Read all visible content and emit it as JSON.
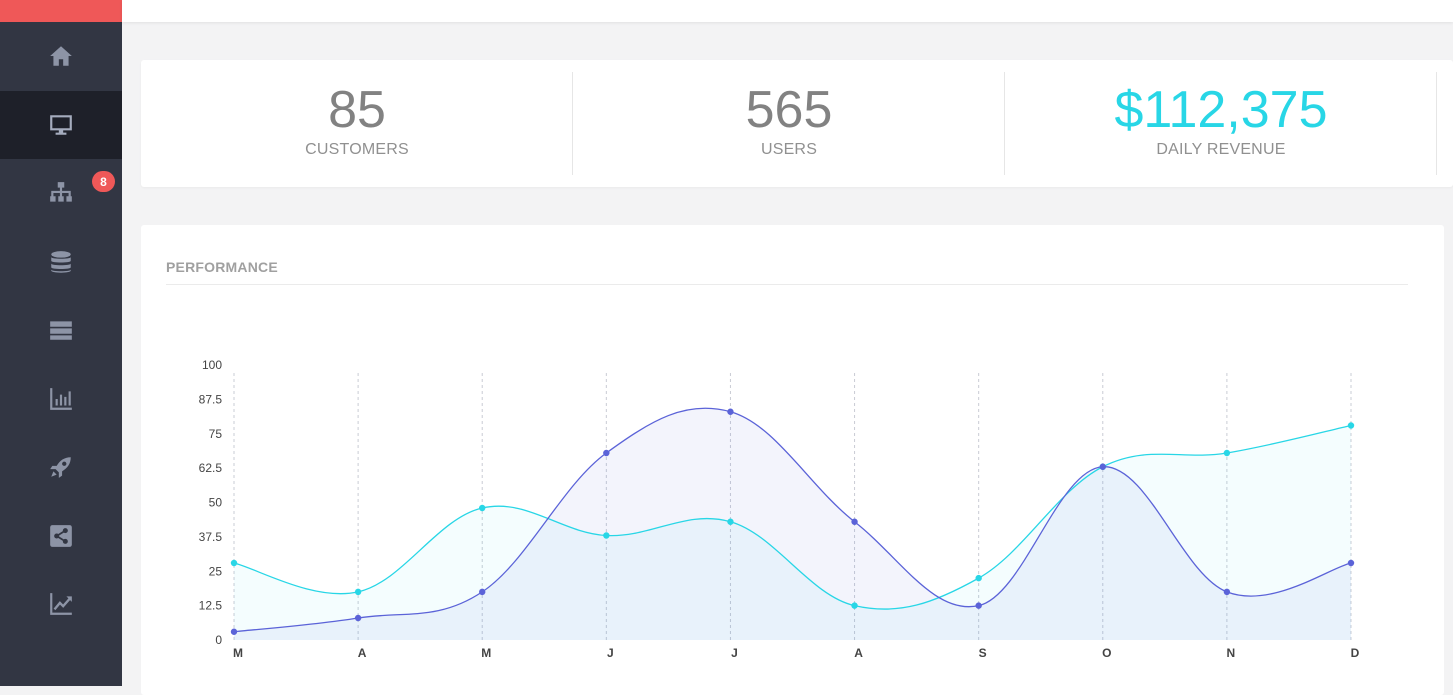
{
  "sidebar": {
    "items": [
      {
        "icon": "home-icon",
        "active": false
      },
      {
        "icon": "monitor-icon",
        "active": true
      },
      {
        "icon": "sitemap-icon",
        "active": false,
        "badge": "8"
      },
      {
        "icon": "database-icon",
        "active": false
      },
      {
        "icon": "server-icon",
        "active": false
      },
      {
        "icon": "bar-chart-icon",
        "active": false
      },
      {
        "icon": "rocket-icon",
        "active": false
      },
      {
        "icon": "share-icon",
        "active": false
      },
      {
        "icon": "line-chart-icon",
        "active": false
      }
    ]
  },
  "stats": [
    {
      "value": "85",
      "label": "CUSTOMERS"
    },
    {
      "value": "565",
      "label": "USERS"
    },
    {
      "value": "$112,375",
      "label": "DAILY REVENUE",
      "accent": "#28d6e6"
    }
  ],
  "panel": {
    "title": "PERFORMANCE"
  },
  "colors": {
    "series_a": "#28d6e6",
    "series_b": "#5b63d8",
    "sidebar": "#323643",
    "brand": "#ef5858"
  },
  "chart_data": {
    "type": "area",
    "categories": [
      "M",
      "A",
      "M",
      "J",
      "J",
      "A",
      "S",
      "O",
      "N",
      "D"
    ],
    "series": [
      {
        "values": [
          28,
          17.5,
          48,
          38,
          43,
          12.5,
          22.5,
          63,
          68,
          78
        ]
      },
      {
        "values": [
          3,
          8,
          17.5,
          68,
          83,
          43,
          12.5,
          63,
          17.5,
          28
        ]
      }
    ],
    "yticks": [
      "0",
      "12.5",
      "25",
      "37.5",
      "50",
      "62.5",
      "75",
      "87.5",
      "100"
    ],
    "ylim": [
      0,
      100
    ],
    "grid": "vertical dashed"
  }
}
